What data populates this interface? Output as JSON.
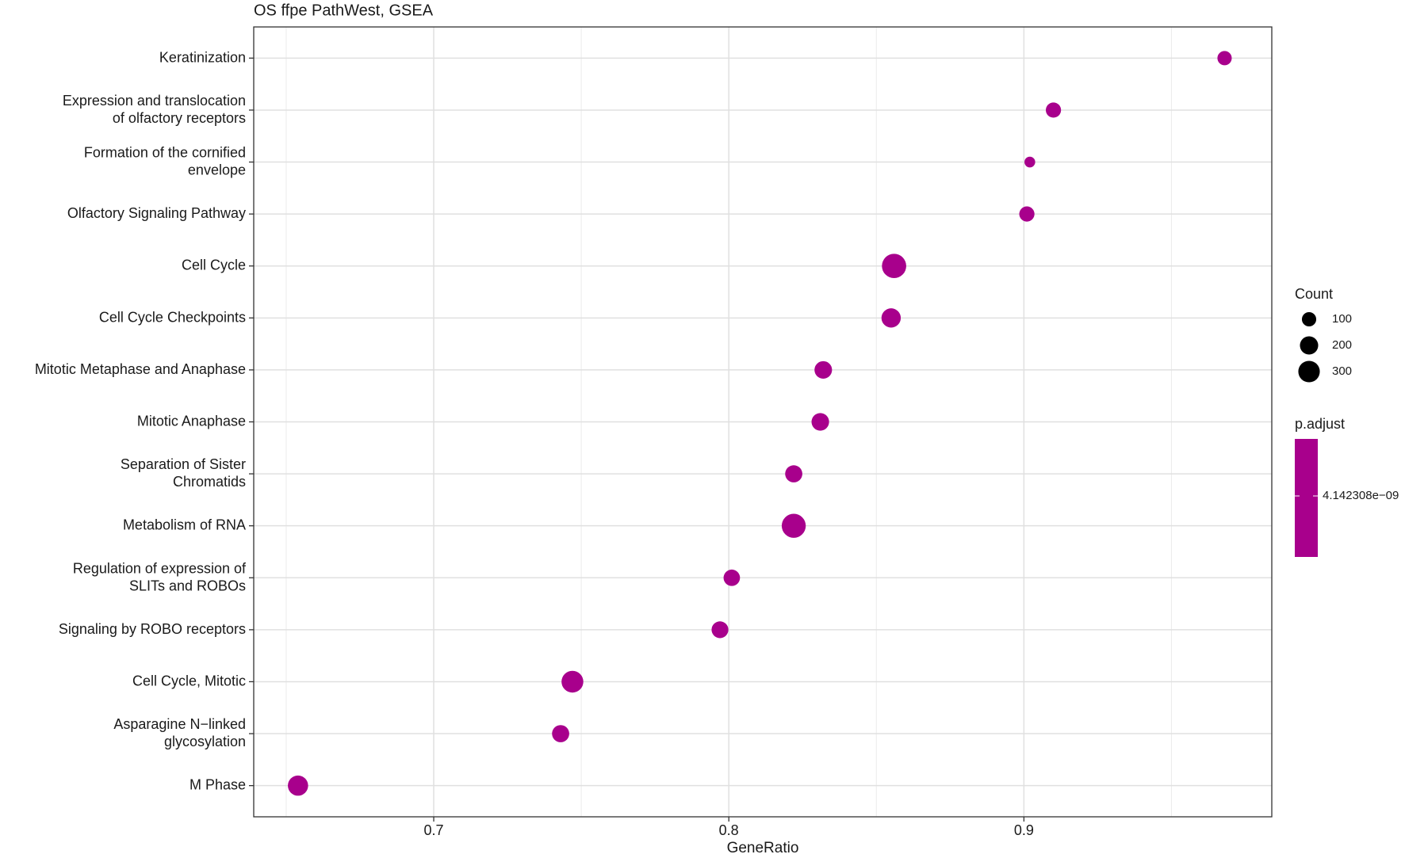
{
  "chart_data": {
    "type": "dot",
    "title": "OS ffpe PathWest, GSEA",
    "x_label": "GeneRatio",
    "categories": [
      "Keratinization",
      "Expression and translocation\nof olfactory receptors",
      "Formation of the cornified\nenvelope",
      "Olfactory Signaling Pathway",
      "Cell Cycle",
      "Cell Cycle Checkpoints",
      "Mitotic Metaphase and Anaphase",
      "Mitotic Anaphase",
      "Separation of Sister\nChromatids",
      "Metabolism of RNA",
      "Regulation of expression of\nSLITs and ROBOs",
      "Signaling by ROBO receptors",
      "Cell Cycle, Mitotic",
      "Asparagine N−linked\nglycosylation",
      "M Phase"
    ],
    "values": [
      0.968,
      0.91,
      0.902,
      0.901,
      0.856,
      0.855,
      0.832,
      0.831,
      0.822,
      0.822,
      0.801,
      0.797,
      0.747,
      0.743,
      0.654
    ],
    "sizes": [
      100,
      120,
      30,
      120,
      400,
      230,
      180,
      180,
      170,
      390,
      150,
      160,
      310,
      170,
      260
    ],
    "color": "#a8008c",
    "xlim": [
      0.639,
      0.984
    ],
    "xticks": [
      0.7,
      0.8,
      0.9
    ],
    "grid": true,
    "size_legend": {
      "title": "Count",
      "breaks": [
        100,
        200,
        300
      ]
    },
    "color_legend": {
      "title": "p.adjust",
      "ticks": [
        {
          "value": 4.142308e-09,
          "label": "4.142308e−09"
        }
      ]
    }
  }
}
